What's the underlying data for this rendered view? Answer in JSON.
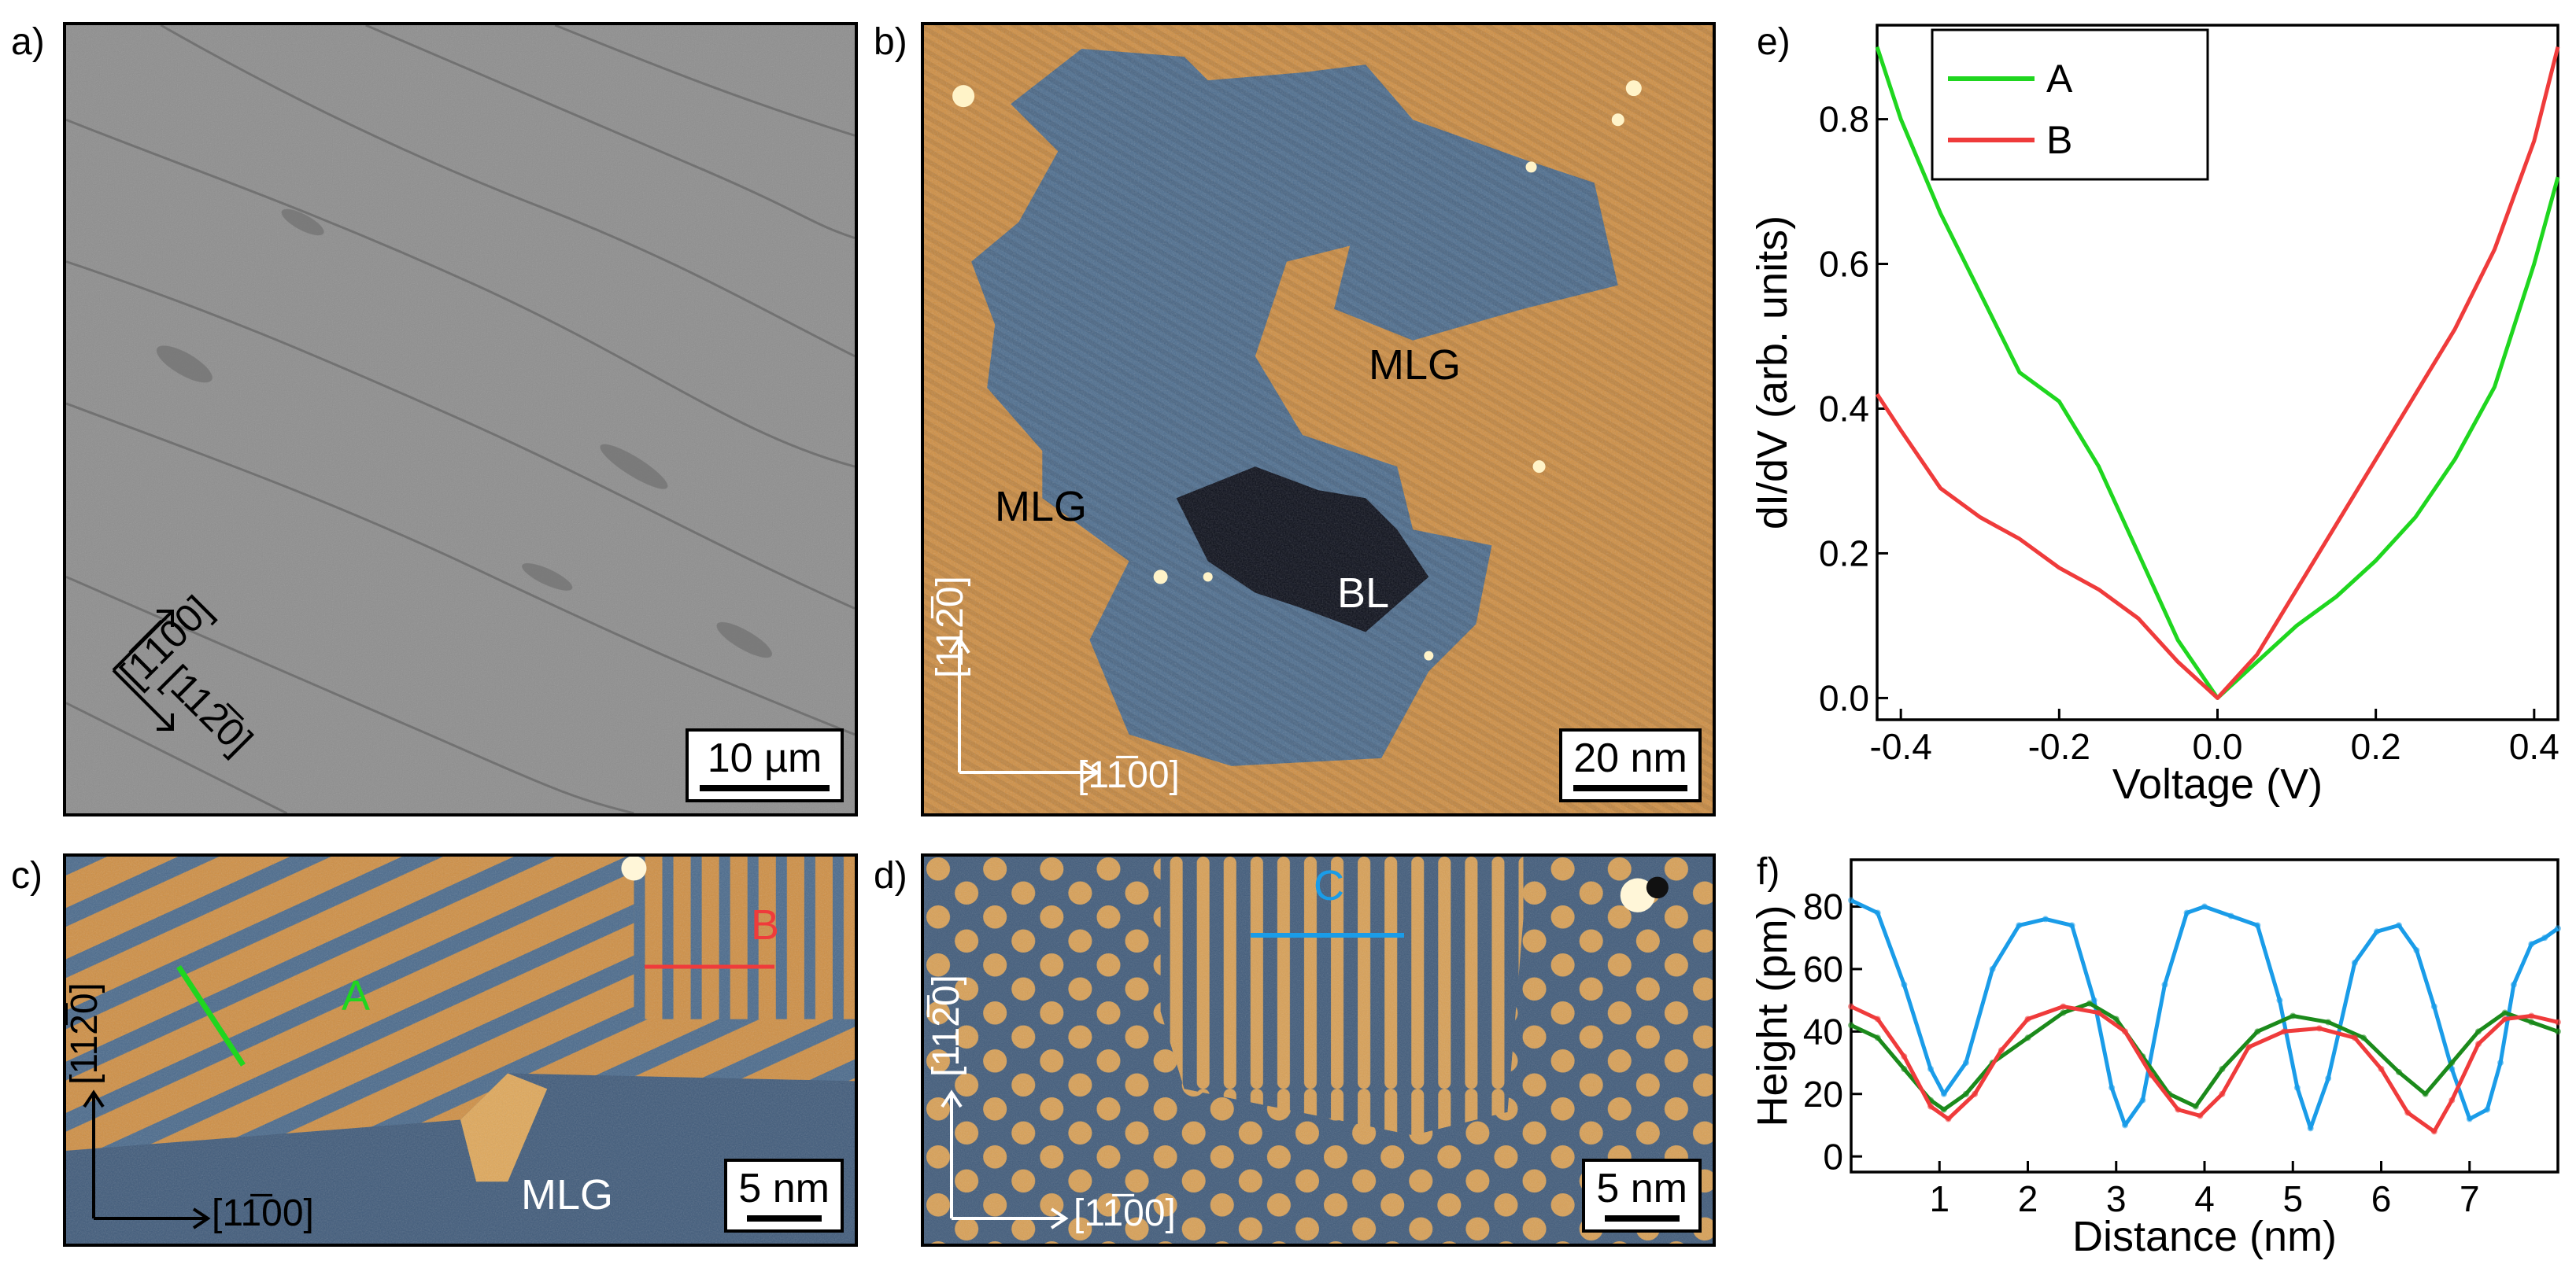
{
  "panels": {
    "a": {
      "label": "a)",
      "scale": "10 µm",
      "dir1": "[1̅1̅00]",
      "dir2": "[112̅0]"
    },
    "b": {
      "label": "b)",
      "scale": "20 nm",
      "mlg1": "MLG",
      "mlg2": "MLG",
      "bl": "BL",
      "axis_v": "[112̅0]",
      "axis_h": "[11̅00]"
    },
    "c": {
      "label": "c)",
      "scale": "5 nm",
      "line_a": "A",
      "line_b": "B",
      "mlg": "MLG",
      "axis_v": "[112̅0]",
      "axis_h": "[11̅00]"
    },
    "d": {
      "label": "d)",
      "scale": "5 nm",
      "line_c": "C",
      "axis_v": "[112̅0]",
      "axis_h": "[11̅00]"
    }
  },
  "colors": {
    "A": "#1fd61f",
    "B": "#ef3b3b",
    "C": "#1a9ce8",
    "dark_green": "#1b8a1b"
  },
  "chart_data": [
    {
      "panel_label": "e)",
      "type": "line",
      "xlabel": "Voltage (V)",
      "ylabel": "dI/dV (arb. units)",
      "xlim": [
        -0.43,
        0.43
      ],
      "ylim": [
        -0.03,
        0.93
      ],
      "xticks": [
        -0.4,
        -0.2,
        0.0,
        0.2,
        0.4
      ],
      "xtick_labels": [
        "-0.4",
        "-0.2",
        "0.0",
        "0.2",
        "0.4"
      ],
      "yticks": [
        0.0,
        0.2,
        0.4,
        0.6,
        0.8
      ],
      "ytick_labels": [
        "0.0",
        "0.2",
        "0.4",
        "0.6",
        "0.8"
      ],
      "legend": [
        "A",
        "B"
      ],
      "series": [
        {
          "name": "A",
          "color": "#1fd61f",
          "x": [
            -0.43,
            -0.4,
            -0.35,
            -0.3,
            -0.25,
            -0.2,
            -0.15,
            -0.1,
            -0.05,
            0.0,
            0.05,
            0.1,
            0.15,
            0.2,
            0.25,
            0.3,
            0.35,
            0.4,
            0.43
          ],
          "y": [
            0.9,
            0.8,
            0.67,
            0.56,
            0.45,
            0.41,
            0.32,
            0.2,
            0.08,
            0.0,
            0.05,
            0.1,
            0.14,
            0.19,
            0.25,
            0.33,
            0.43,
            0.6,
            0.72
          ]
        },
        {
          "name": "B",
          "color": "#ef3b3b",
          "x": [
            -0.43,
            -0.4,
            -0.35,
            -0.3,
            -0.25,
            -0.2,
            -0.15,
            -0.1,
            -0.05,
            0.0,
            0.05,
            0.1,
            0.15,
            0.2,
            0.25,
            0.3,
            0.35,
            0.4,
            0.43
          ],
          "y": [
            0.42,
            0.37,
            0.29,
            0.25,
            0.22,
            0.18,
            0.15,
            0.11,
            0.05,
            0.0,
            0.06,
            0.15,
            0.24,
            0.33,
            0.42,
            0.51,
            0.62,
            0.77,
            0.9
          ]
        }
      ]
    },
    {
      "panel_label": "f)",
      "type": "line",
      "xlabel": "Distance (nm)",
      "ylabel": "Height (pm)",
      "xlim": [
        0,
        8
      ],
      "ylim": [
        -5,
        95
      ],
      "xticks": [
        1,
        2,
        3,
        4,
        5,
        6,
        7
      ],
      "xtick_labels": [
        "1",
        "2",
        "3",
        "4",
        "5",
        "6",
        "7"
      ],
      "yticks": [
        0,
        20,
        40,
        60,
        80
      ],
      "ytick_labels": [
        "0",
        "20",
        "40",
        "60",
        "80"
      ],
      "series": [
        {
          "name": "C",
          "color": "#1a9ce8",
          "x": [
            0,
            0.3,
            0.6,
            0.9,
            1.05,
            1.3,
            1.6,
            1.9,
            2.2,
            2.5,
            2.75,
            2.95,
            3.1,
            3.3,
            3.55,
            3.8,
            4.0,
            4.3,
            4.6,
            4.85,
            5.05,
            5.2,
            5.4,
            5.7,
            5.95,
            6.2,
            6.4,
            6.6,
            6.8,
            7.0,
            7.2,
            7.35,
            7.5,
            7.7,
            7.85,
            8.0
          ],
          "y": [
            82,
            78,
            55,
            28,
            20,
            30,
            60,
            74,
            76,
            74,
            50,
            22,
            10,
            18,
            55,
            78,
            80,
            77,
            74,
            50,
            22,
            9,
            25,
            62,
            72,
            74,
            66,
            48,
            28,
            12,
            15,
            30,
            55,
            68,
            70,
            73
          ]
        },
        {
          "name": "A",
          "color": "#1b8a1b",
          "x": [
            0,
            0.3,
            0.6,
            0.9,
            1.05,
            1.3,
            1.6,
            2.0,
            2.4,
            2.7,
            3.0,
            3.3,
            3.6,
            3.9,
            4.2,
            4.6,
            5.0,
            5.4,
            5.8,
            6.2,
            6.5,
            6.8,
            7.1,
            7.4,
            7.7,
            8.0
          ],
          "y": [
            42,
            38,
            28,
            18,
            15,
            20,
            30,
            38,
            46,
            49,
            44,
            32,
            20,
            16,
            28,
            40,
            45,
            43,
            38,
            27,
            20,
            30,
            40,
            46,
            43,
            40
          ]
        },
        {
          "name": "B",
          "color": "#ef3b3b",
          "x": [
            0,
            0.3,
            0.6,
            0.9,
            1.1,
            1.4,
            1.7,
            2.0,
            2.4,
            2.8,
            3.1,
            3.4,
            3.7,
            3.95,
            4.2,
            4.5,
            4.9,
            5.3,
            5.7,
            6.0,
            6.3,
            6.6,
            6.8,
            7.1,
            7.4,
            7.7,
            8.0
          ],
          "y": [
            48,
            44,
            32,
            16,
            12,
            20,
            34,
            44,
            48,
            46,
            40,
            26,
            15,
            13,
            20,
            35,
            40,
            41,
            38,
            28,
            14,
            8,
            18,
            36,
            44,
            45,
            43
          ]
        }
      ]
    }
  ]
}
